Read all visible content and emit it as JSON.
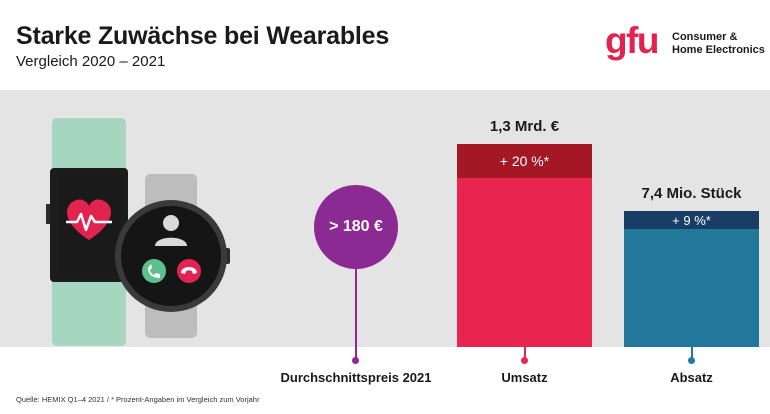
{
  "header": {
    "title": "Starke Zuwächse bei Wearables",
    "subtitle": "Vergleich 2020 – 2021"
  },
  "logo": {
    "mark": "gfu",
    "line1": "Consumer &",
    "line2": "Home Electronics"
  },
  "colors": {
    "brand_red": "#e3234f",
    "price_purple": "#8b2a93",
    "revenue_bar": "#e8254f",
    "revenue_growth": "#a41826",
    "units_bar": "#21789b",
    "units_growth": "#183e66",
    "panel": "#e4e4e4"
  },
  "icons": {
    "watch_left": "fitness-tracker-heart-icon",
    "watch_right": "smartwatch-call-icon"
  },
  "chart_data": {
    "type": "bar",
    "categories": [
      "Durchschnittspreis 2021",
      "Umsatz",
      "Absatz"
    ],
    "price": {
      "label": "> 180 €"
    },
    "revenue": {
      "value_label": "1,3 Mrd. €",
      "growth_label": "+ 20 %*",
      "growth_percent": 20
    },
    "units": {
      "value_label": "7,4 Mio. Stück",
      "growth_label": "+ 9 %*",
      "growth_percent": 9
    }
  },
  "footer": {
    "source": "Quelle: HEMIX Q1–4 2021 / * Prozent-Angaben im Vergleich zum Vorjahr"
  }
}
